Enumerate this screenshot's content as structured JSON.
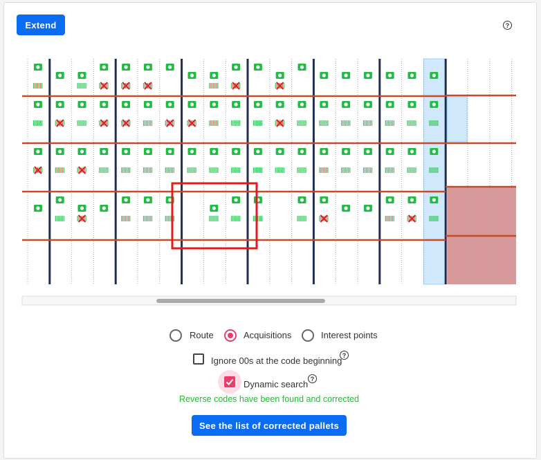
{
  "header": {
    "extend_button": "Extend",
    "help": "?"
  },
  "view_mode": {
    "options": [
      "Route",
      "Acquisitions",
      "Interest points"
    ],
    "selected": "Acquisitions"
  },
  "options": {
    "ignore_zeros": {
      "label": "Ignore 00s at the code beginning",
      "help": "?"
    },
    "dynamic_search": {
      "label": "Dynamic search",
      "help": "?"
    }
  },
  "status_message": "Reverse codes have been found and corrected",
  "action_button": "See the list of corrected pallets"
}
